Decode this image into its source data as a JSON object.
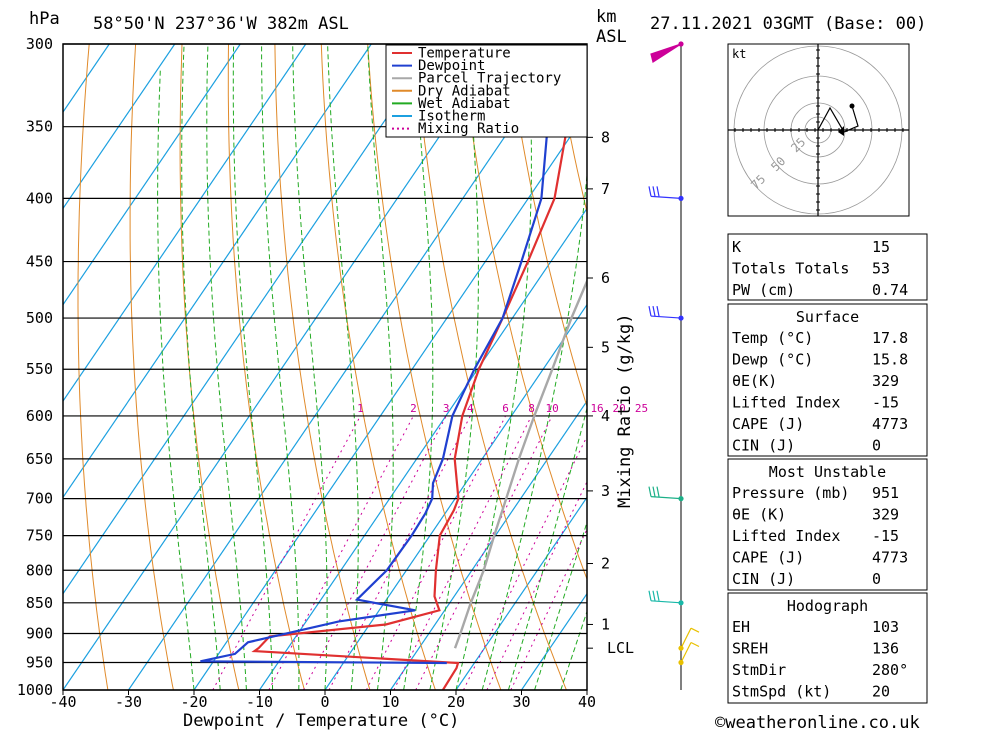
{
  "header": {
    "hpa_label": "hPa",
    "location": "58°50'N  237°36'W  382m  ASL",
    "km_label": "km",
    "asl_label": "ASL",
    "datetime": "27.11.2021  03GMT  (Base: 00)"
  },
  "footer": {
    "xlabel": "Dewpoint / Temperature (°C)",
    "copyright": "©weatheronline.co.uk"
  },
  "colors": {
    "temperature": "#e03030",
    "dewpoint": "#2040d0",
    "parcel": "#a8a8a8",
    "dry_adiabat": "#e08a2a",
    "wet_adiabat": "#22aa22",
    "isotherm": "#1ca0e0",
    "mixing_ratio": "#cc0099",
    "wind_pole": "#000000"
  },
  "chart_data": {
    "type": "line",
    "xlabel": "Dewpoint / Temperature (°C)",
    "ylabel": "hPa",
    "xlim": [
      -40,
      40
    ],
    "ylim": [
      1000,
      300
    ],
    "x_ticks": [
      -40,
      -30,
      -20,
      -10,
      0,
      10,
      20,
      30,
      40
    ],
    "y_ticks": [
      300,
      350,
      400,
      450,
      500,
      550,
      600,
      650,
      700,
      750,
      800,
      850,
      900,
      950,
      1000
    ],
    "secondary_ylabel": "Mixing Ratio (g/kg)",
    "km_ticks": [
      {
        "km": "8",
        "p": 357
      },
      {
        "km": "7",
        "p": 393
      },
      {
        "km": "6",
        "p": 464
      },
      {
        "km": "5",
        "p": 528
      },
      {
        "km": "4",
        "p": 600
      },
      {
        "km": "3",
        "p": 690
      },
      {
        "km": "2",
        "p": 790
      },
      {
        "km": "1",
        "p": 885
      }
    ],
    "lcl_label": "LCL",
    "lcl_pressure": 925,
    "mixing_ratio_labels": [
      "1",
      "2",
      "3",
      "4",
      "6",
      "8",
      "10",
      "16",
      "20",
      "25"
    ],
    "legend": [
      "Temperature",
      "Dewpoint",
      "Parcel Trajectory",
      "Dry Adiabat",
      "Wet Adiabat",
      "Isotherm",
      "Mixing Ratio"
    ],
    "series": [
      {
        "name": "Temperature",
        "points": [
          [
            1000,
            18.0
          ],
          [
            960,
            17.8
          ],
          [
            951,
            17.5
          ],
          [
            930,
            -14.8
          ],
          [
            925,
            -14.5
          ],
          [
            905,
            -14.0
          ],
          [
            885,
            2.5
          ],
          [
            862,
            9.2
          ],
          [
            855,
            8.5
          ],
          [
            840,
            7.0
          ],
          [
            800,
            4.5
          ],
          [
            750,
            1.5
          ],
          [
            715,
            1.0
          ],
          [
            700,
            0.5
          ],
          [
            650,
            -4.2
          ],
          [
            600,
            -7.5
          ],
          [
            550,
            -9.8
          ],
          [
            500,
            -11.5
          ],
          [
            450,
            -13.5
          ],
          [
            400,
            -16.0
          ],
          [
            350,
            -21.5
          ],
          [
            330,
            -22.8
          ],
          [
            300,
            -21.5
          ]
        ]
      },
      {
        "name": "Dewpoint",
        "points": [
          [
            951,
            15.8
          ],
          [
            948,
            -22.0
          ],
          [
            935,
            -17.5
          ],
          [
            915,
            -16.7
          ],
          [
            880,
            -5.0
          ],
          [
            862,
            5.5
          ],
          [
            845,
            -4.5
          ],
          [
            815,
            -3.5
          ],
          [
            800,
            -3.0
          ],
          [
            750,
            -2.8
          ],
          [
            720,
            -3.0
          ],
          [
            700,
            -3.5
          ],
          [
            680,
            -5.0
          ],
          [
            650,
            -6.0
          ],
          [
            600,
            -9.0
          ],
          [
            550,
            -10.5
          ],
          [
            500,
            -11.5
          ],
          [
            450,
            -14.5
          ],
          [
            400,
            -18.0
          ],
          [
            350,
            -24.5
          ],
          [
            330,
            -26.0
          ],
          [
            300,
            -23.5
          ]
        ]
      },
      {
        "name": "Parcel Trajectory",
        "points": [
          [
            925,
            15.5
          ],
          [
            900,
            14.8
          ],
          [
            850,
            13.2
          ],
          [
            800,
            11.8
          ],
          [
            750,
            9.8
          ],
          [
            700,
            7.8
          ],
          [
            650,
            5.6
          ],
          [
            600,
            3.5
          ],
          [
            550,
            1.4
          ],
          [
            500,
            -1.0
          ],
          [
            450,
            -3.2
          ],
          [
            400,
            -5.5
          ],
          [
            350,
            -7.8
          ],
          [
            300,
            -7.0
          ]
        ]
      }
    ],
    "wind_barbs": [
      {
        "pressure": 300,
        "color": "#cc0099"
      },
      {
        "pressure": 400,
        "color": "#3333ff"
      },
      {
        "pressure": 500,
        "color": "#3333ff"
      },
      {
        "pressure": 700,
        "color": "#1cb088"
      },
      {
        "pressure": 850,
        "color": "#18b8a8"
      },
      {
        "pressure": 925,
        "color": "#e8c000"
      },
      {
        "pressure": 950,
        "color": "#e8c000"
      }
    ]
  },
  "hodograph": {
    "unit": "kt",
    "ring_labels": [
      "25",
      "50",
      "75"
    ]
  },
  "indices": {
    "general": [
      {
        "label": "K",
        "value": "15"
      },
      {
        "label": "Totals Totals",
        "value": "53"
      },
      {
        "label": "PW (cm)",
        "value": "0.74"
      }
    ],
    "surface_title": "Surface",
    "surface": [
      {
        "label": "Temp (°C)",
        "value": "17.8"
      },
      {
        "label": "Dewp (°C)",
        "value": "15.8"
      },
      {
        "label": "θE(K)",
        "value": "329"
      },
      {
        "label": "Lifted Index",
        "value": "-15"
      },
      {
        "label": "CAPE (J)",
        "value": "4773"
      },
      {
        "label": "CIN (J)",
        "value": "0"
      }
    ],
    "unstable_title": "Most Unstable",
    "unstable": [
      {
        "label": "Pressure (mb)",
        "value": "951"
      },
      {
        "label": "θE (K)",
        "value": "329"
      },
      {
        "label": "Lifted Index",
        "value": "-15"
      },
      {
        "label": "CAPE (J)",
        "value": "4773"
      },
      {
        "label": "CIN (J)",
        "value": "0"
      }
    ],
    "hodo_title": "Hodograph",
    "hodo": [
      {
        "label": "EH",
        "value": "103"
      },
      {
        "label": "SREH",
        "value": "136"
      },
      {
        "label": "StmDir",
        "value": "280°"
      },
      {
        "label": "StmSpd (kt)",
        "value": "20"
      }
    ]
  }
}
